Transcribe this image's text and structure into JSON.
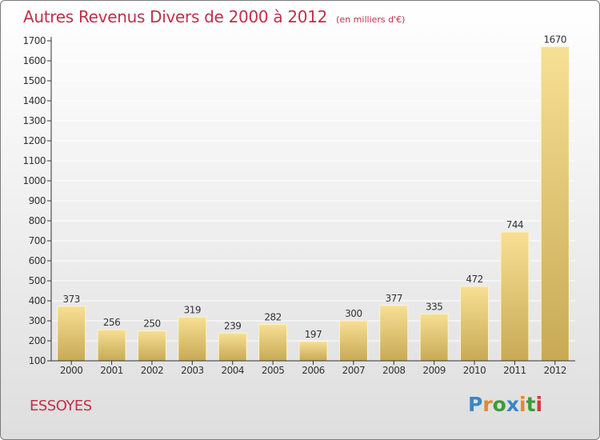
{
  "header": {
    "title": "Autres Revenus Divers de 2000 à 2012",
    "subtitle": "(en milliers d'€)"
  },
  "footer": {
    "town": "ESSOYES",
    "logo_letters": [
      {
        "ch": "P",
        "color": "#3a86c8"
      },
      {
        "ch": "r",
        "color": "#e8862a"
      },
      {
        "ch": "o",
        "color": "#3a9d3a"
      },
      {
        "ch": "x",
        "color": "#3a86c8"
      },
      {
        "ch": "i",
        "color": "#e8862a"
      },
      {
        "ch": "t",
        "color": "#3a9d3a"
      },
      {
        "ch": "i",
        "color": "#d03a3a"
      }
    ]
  },
  "colors": {
    "accent": "#c0304a",
    "bar_light": "#f7df94",
    "bar_dark": "#c8aa55",
    "axis": "#333333",
    "grid": "#ffffff"
  },
  "chart_data": {
    "type": "bar",
    "title": "Autres Revenus Divers de 2000 à 2012",
    "subtitle": "(en milliers d'€)",
    "categories": [
      "2000",
      "2001",
      "2002",
      "2003",
      "2004",
      "2005",
      "2006",
      "2007",
      "2008",
      "2009",
      "2010",
      "2011",
      "2012"
    ],
    "values": [
      373,
      256,
      250,
      319,
      239,
      282,
      197,
      300,
      377,
      335,
      472,
      744,
      1670
    ],
    "ylim": [
      100,
      1700
    ],
    "yticks": [
      100,
      200,
      300,
      400,
      500,
      600,
      700,
      800,
      900,
      1000,
      1100,
      1200,
      1300,
      1400,
      1500,
      1600,
      1700
    ],
    "grid": true,
    "data_labels": true
  }
}
